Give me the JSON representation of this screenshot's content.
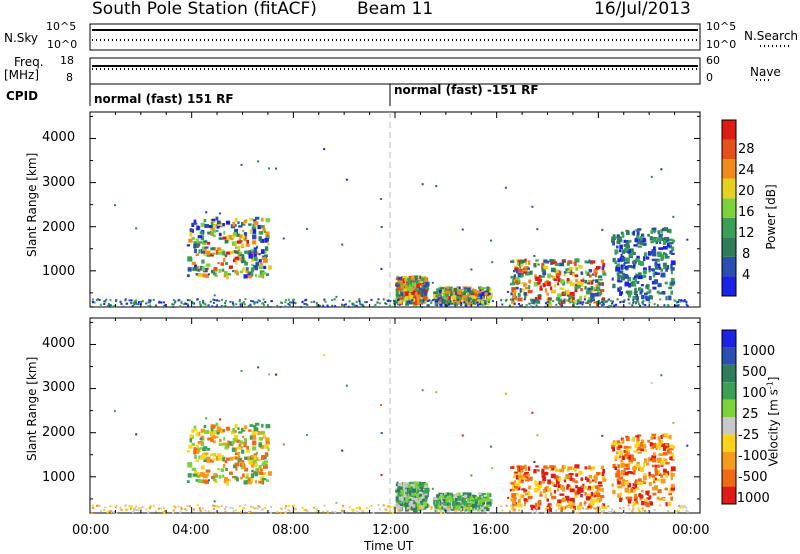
{
  "header": {
    "station": "South Pole Station (fitACF)",
    "beam": "Beam 11",
    "date": "16/Jul/2013"
  },
  "aux_panels": {
    "nsky_label": "N.Sky",
    "nsky_ticks": [
      "10^5",
      "10^0"
    ],
    "nsearch_label": "N.Search",
    "nsearch_ticks": [
      "10^5",
      "10^0"
    ],
    "freq_label": "Freq.",
    "freq_unit": "[MHz]",
    "freq_ticks": [
      "18",
      "8"
    ],
    "nave_label": "Nave",
    "nave_ticks": [
      "60",
      "0"
    ],
    "cpid_label": "CPID",
    "cpid_mode1": "normal (fast) 151 RF",
    "cpid_mode2": "normal (fast) -151 RF"
  },
  "colors": {
    "power_scale": [
      "#1b22e6",
      "#2a4fb0",
      "#2f7d5a",
      "#3aa055",
      "#7bd23a",
      "#e6d21e",
      "#f08a1a",
      "#e8501a",
      "#e01a14"
    ],
    "velocity_scale": [
      "#1b22e6",
      "#2a4fb0",
      "#2f7d5a",
      "#3aa055",
      "#7bd23a",
      "#c8c8c8",
      "#ffd21a",
      "#f59a1a",
      "#f06a14",
      "#e01a14"
    ]
  },
  "chart_data": [
    {
      "type": "heatmap",
      "panel": "power",
      "ylabel": "Slant Range [km]",
      "ylim": [
        180,
        4600
      ],
      "yticks": [
        "1000",
        "2000",
        "3000",
        "4000"
      ],
      "xlim_hours": [
        0,
        24
      ],
      "colorbar_label": "Power [dB]",
      "colorbar_ticks": [
        "4",
        "8",
        "12",
        "16",
        "20",
        "24",
        "28"
      ],
      "scatter_regions": [
        {
          "t_start": 3.8,
          "t_end": 7.0,
          "r_min": 900,
          "r_max": 2250,
          "level": "medium"
        },
        {
          "t_start": 12.0,
          "t_end": 13.2,
          "r_min": 300,
          "r_max": 900,
          "level": "high"
        },
        {
          "t_start": 13.5,
          "t_end": 15.7,
          "r_min": 300,
          "r_max": 650,
          "level": "medium"
        },
        {
          "t_start": 16.5,
          "t_end": 20.2,
          "r_min": 280,
          "r_max": 1300,
          "level": "high"
        },
        {
          "t_start": 20.5,
          "t_end": 22.9,
          "r_min": 400,
          "r_max": 2000,
          "level": "low"
        }
      ]
    },
    {
      "type": "heatmap",
      "panel": "velocity",
      "ylabel": "Slant Range [km]",
      "ylim": [
        180,
        4600
      ],
      "yticks": [
        "1000",
        "2000",
        "3000",
        "4000"
      ],
      "xlim_hours": [
        0,
        24
      ],
      "xlabel": "Time UT",
      "xticks": [
        "00:00",
        "04:00",
        "08:00",
        "12:00",
        "16:00",
        "20:00",
        "00:00"
      ],
      "colorbar_label": "Velocity [m s",
      "colorbar_label_sup": "-1",
      "colorbar_label_end": "]",
      "colorbar_ticks": [
        "1000",
        "500",
        "100",
        "25",
        "-25",
        "-100",
        "-500",
        "-1000"
      ]
    }
  ]
}
